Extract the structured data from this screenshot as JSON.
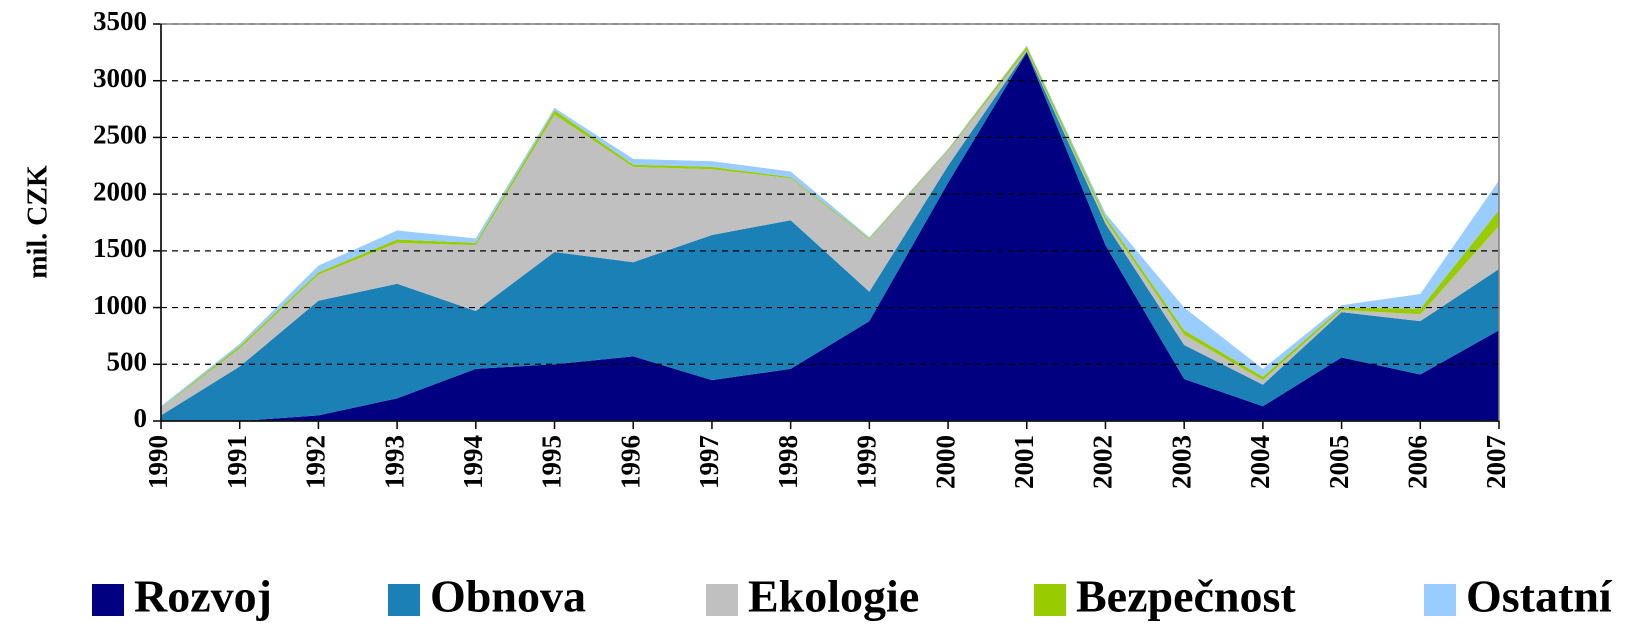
{
  "chart_data": {
    "type": "area",
    "stacked": true,
    "ylabel": "mil. CZK",
    "categories": [
      "1990",
      "1991",
      "1992",
      "1993",
      "1994",
      "1995",
      "1996",
      "1997",
      "1998",
      "1999",
      "2000",
      "2001",
      "2002",
      "2003",
      "2004",
      "2005",
      "2006",
      "2007"
    ],
    "ylim": [
      0,
      3500
    ],
    "yticks": [
      0,
      500,
      1000,
      1500,
      2000,
      2500,
      3000,
      3500
    ],
    "grid": true,
    "legend": "bottom",
    "series": [
      {
        "name": "Rozvoj",
        "color": "#000080",
        "values": [
          0,
          0,
          50,
          200,
          460,
          500,
          570,
          360,
          460,
          880,
          2100,
          3250,
          1550,
          370,
          130,
          560,
          410,
          800
        ]
      },
      {
        "name": "Obnova",
        "color": "#1a80b6",
        "values": [
          50,
          480,
          1010,
          1010,
          510,
          990,
          830,
          1280,
          1310,
          260,
          150,
          10,
          190,
          300,
          190,
          400,
          470,
          540
        ]
      },
      {
        "name": "Ekologie",
        "color": "#c0c0c0",
        "values": [
          60,
          160,
          230,
          360,
          580,
          1210,
          840,
          580,
          370,
          460,
          130,
          10,
          30,
          90,
          40,
          20,
          60,
          380
        ]
      },
      {
        "name": "Bezpečnost",
        "color": "#99cc00",
        "values": [
          5,
          20,
          20,
          30,
          20,
          40,
          20,
          20,
          10,
          10,
          10,
          30,
          30,
          40,
          30,
          20,
          50,
          140
        ]
      },
      {
        "name": "Ostatní",
        "color": "#99ccff",
        "values": [
          15,
          20,
          60,
          80,
          40,
          20,
          50,
          50,
          50,
          10,
          10,
          10,
          30,
          200,
          70,
          20,
          130,
          260
        ]
      }
    ]
  }
}
